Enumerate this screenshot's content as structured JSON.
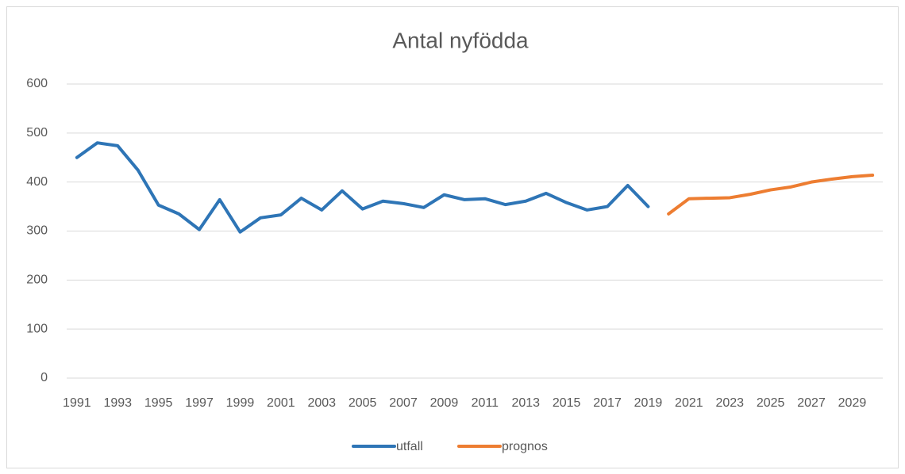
{
  "chart_data": {
    "type": "line",
    "title": "Antal nyfödda",
    "categories": [
      "1991",
      null,
      "1993",
      null,
      "1995",
      null,
      "1997",
      null,
      "1999",
      null,
      "2001",
      null,
      "2003",
      null,
      "2005",
      null,
      "2007",
      null,
      "2009",
      null,
      "2011",
      null,
      "2013",
      null,
      "2015",
      null,
      "2017",
      null,
      "2019",
      null,
      "2021",
      null,
      "2023",
      null,
      "2025",
      null,
      "2027",
      null,
      "2029",
      null
    ],
    "series": [
      {
        "name": "utfall",
        "color": "#2e75b6",
        "values": [
          450,
          480,
          474,
          424,
          353,
          335,
          303,
          364,
          298,
          327,
          333,
          367,
          343,
          382,
          345,
          361,
          356,
          348,
          374,
          364,
          366,
          354,
          361,
          377,
          358,
          343,
          350,
          393,
          350,
          null,
          null,
          null,
          null,
          null,
          null,
          null,
          null,
          null,
          null,
          null
        ]
      },
      {
        "name": "prognos",
        "color": "#ed7d31",
        "values": [
          null,
          null,
          null,
          null,
          null,
          null,
          null,
          null,
          null,
          null,
          null,
          null,
          null,
          null,
          null,
          null,
          null,
          null,
          null,
          null,
          null,
          null,
          null,
          null,
          null,
          null,
          null,
          null,
          null,
          335,
          366,
          367,
          368,
          375,
          384,
          390,
          400,
          406,
          411,
          414
        ]
      }
    ],
    "ylim": [
      0,
      600
    ],
    "yticks": [
      0,
      100,
      200,
      300,
      400,
      500,
      600
    ],
    "grid": true,
    "legend": "bottom"
  }
}
